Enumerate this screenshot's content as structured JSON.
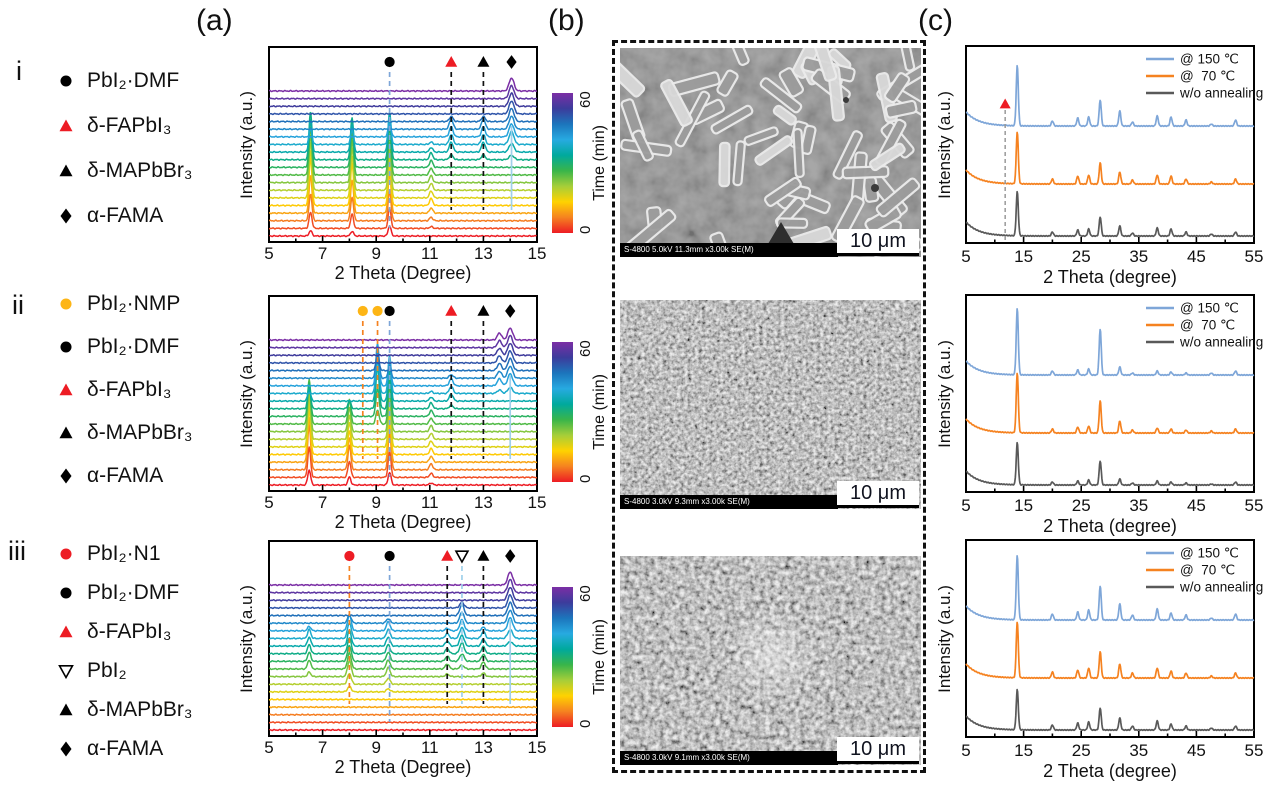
{
  "figure": {
    "panel_labels": {
      "a": "(a)",
      "b": "(b)",
      "c": "(c)"
    },
    "row_labels": [
      "i",
      "ii",
      "iii"
    ]
  },
  "colors": {
    "accent_blue": "#7ea6d8",
    "accent_orange": "#f58220",
    "accent_gray": "#595959",
    "marker_red": "#ed1c24",
    "marker_yellow": "#fdb515",
    "dash_black": "#111111",
    "dash_blue": "#7ea6d8",
    "dash_lightblue": "#9fd0ea",
    "dash_orange": "#f58220",
    "annotation_dash_gray": "#999999",
    "time_colormap": [
      "#ed1c24",
      "#f58220",
      "#ffd200",
      "#a6ce39",
      "#39b54a",
      "#00a99d",
      "#27aae1",
      "#1c75bc",
      "#3c3c9c",
      "#7b2ea5"
    ]
  },
  "chart_data": [
    {
      "id": "a-i",
      "type": "line",
      "variant": "waterfall",
      "xlabel": "2 Theta (Degree)",
      "ylabel": "Intensity (a.u.)",
      "xlim": [
        5,
        15
      ],
      "xticks": [
        5,
        7,
        9,
        11,
        13,
        15
      ],
      "n_curves": 20,
      "colorbar": {
        "label": "Time (min)",
        "min": 0,
        "max": 60
      },
      "legend": [
        {
          "shape": "circle",
          "color": "#000000",
          "label": "PbI₂·DMF"
        },
        {
          "shape": "triangle",
          "color": "#ed1c24",
          "label": "δ-FAPbI₃"
        },
        {
          "shape": "triangle",
          "color": "#000000",
          "label": "δ-MAPbBr₃"
        },
        {
          "shape": "diamond",
          "color": "#000000",
          "label": "α-FAMA"
        }
      ],
      "markers": [
        {
          "shape": "circle",
          "color": "#000000",
          "x": 9.5,
          "line": "dash-blue",
          "len": "long"
        },
        {
          "shape": "triangle",
          "color": "#ed1c24",
          "x": 11.8,
          "line": "dash-black",
          "len": "normal"
        },
        {
          "shape": "triangle",
          "color": "#000000",
          "x": 13.0,
          "line": "dash-black",
          "len": "normal"
        },
        {
          "shape": "diamond",
          "color": "#000000",
          "x": 14.05,
          "line": "solid-lightblue",
          "len": "short"
        }
      ],
      "peaks": [
        {
          "x": 6.55,
          "amp": 48,
          "w": 0.055,
          "t": [
            -0.5,
            4,
            10,
            13
          ]
        },
        {
          "x": 8.1,
          "amp": 42,
          "w": 0.055,
          "t": [
            -0.5,
            4,
            10,
            13
          ]
        },
        {
          "x": 9.5,
          "amp": 40,
          "w": 0.055,
          "t": [
            -1,
            3,
            11,
            14
          ]
        },
        {
          "x": 11.05,
          "amp": 7,
          "w": 0.06,
          "t": [
            0,
            4,
            10,
            13
          ]
        },
        {
          "x": 11.8,
          "amp": 10,
          "w": 0.07,
          "t": [
            9,
            11,
            14,
            16
          ]
        },
        {
          "x": 13.0,
          "amp": 10,
          "w": 0.07,
          "t": [
            9,
            11,
            14,
            16
          ]
        },
        {
          "x": 14.05,
          "amp": 13,
          "w": 0.09,
          "t": [
            9,
            12,
            20,
            21
          ]
        }
      ]
    },
    {
      "id": "a-ii",
      "type": "line",
      "variant": "waterfall",
      "xlabel": "2 Theta (Degree)",
      "ylabel": "Intensity (a.u.)",
      "xlim": [
        5,
        15
      ],
      "xticks": [
        5,
        7,
        9,
        11,
        13,
        15
      ],
      "n_curves": 20,
      "colorbar": {
        "label": "Time (min)",
        "min": 0,
        "max": 60
      },
      "legend": [
        {
          "shape": "circle",
          "color": "#fdb515",
          "label": "PbI₂·NMP"
        },
        {
          "shape": "circle",
          "color": "#000000",
          "label": "PbI₂·DMF"
        },
        {
          "shape": "triangle",
          "color": "#ed1c24",
          "label": "δ-FAPbI₃"
        },
        {
          "shape": "triangle",
          "color": "#000000",
          "label": "δ-MAPbBr₃"
        },
        {
          "shape": "diamond",
          "color": "#000000",
          "label": "α-FAMA"
        }
      ],
      "markers": [
        {
          "shape": "circle",
          "color": "#fdb515",
          "x": 8.5,
          "line": "dash-orange",
          "len": "normal"
        },
        {
          "shape": "circle",
          "color": "#fdb515",
          "x": 9.05,
          "line": "dash-orange",
          "len": "normal"
        },
        {
          "shape": "circle",
          "color": "#000000",
          "x": 9.5,
          "line": "dash-blue",
          "len": "long"
        },
        {
          "shape": "triangle",
          "color": "#ed1c24",
          "x": 11.8,
          "line": "dash-black",
          "len": "normal"
        },
        {
          "shape": "triangle",
          "color": "#000000",
          "x": 13.0,
          "line": "dash-black",
          "len": "normal"
        },
        {
          "shape": "diamond",
          "color": "#000000",
          "x": 14.0,
          "line": "solid-lightblue",
          "len": "short"
        }
      ],
      "peaks": [
        {
          "x": 6.5,
          "amp": 45,
          "w": 0.055,
          "t": [
            -1,
            2,
            8,
            12
          ]
        },
        {
          "x": 8.0,
          "amp": 24,
          "w": 0.055,
          "t": [
            -1,
            2,
            8,
            11
          ]
        },
        {
          "x": 9.05,
          "amp": 42,
          "w": 0.06,
          "t": [
            7,
            10,
            13,
            16
          ]
        },
        {
          "x": 9.5,
          "amp": 38,
          "w": 0.055,
          "t": [
            -1,
            2,
            12,
            15
          ]
        },
        {
          "x": 11.05,
          "amp": 6,
          "w": 0.06,
          "t": [
            -1,
            2,
            10,
            13
          ]
        },
        {
          "x": 11.8,
          "amp": 7,
          "w": 0.07,
          "t": [
            9,
            11,
            13,
            15
          ]
        },
        {
          "x": 13.6,
          "amp": 7,
          "w": 0.08,
          "t": [
            11,
            13,
            20,
            21
          ]
        },
        {
          "x": 14.0,
          "amp": 12,
          "w": 0.09,
          "t": [
            11,
            13,
            20,
            21
          ]
        }
      ]
    },
    {
      "id": "a-iii",
      "type": "line",
      "variant": "waterfall",
      "xlabel": "2 Theta (Degree)",
      "ylabel": "Intensity (a.u.)",
      "xlim": [
        5,
        15
      ],
      "xticks": [
        5,
        7,
        9,
        11,
        13,
        15
      ],
      "n_curves": 20,
      "colorbar": {
        "label": "Time (min)",
        "min": 0,
        "max": 60
      },
      "legend": [
        {
          "shape": "circle",
          "color": "#ed1c24",
          "label": "PbI₂·N1"
        },
        {
          "shape": "circle",
          "color": "#000000",
          "label": "PbI₂·DMF"
        },
        {
          "shape": "triangle",
          "color": "#ed1c24",
          "label": "δ-FAPbI₃"
        },
        {
          "shape": "triangle-down-open",
          "color": "#000000",
          "label": "PbI₂"
        },
        {
          "shape": "triangle",
          "color": "#000000",
          "label": "δ-MAPbBr₃"
        },
        {
          "shape": "diamond",
          "color": "#000000",
          "label": "α-FAMA"
        }
      ],
      "markers": [
        {
          "shape": "circle",
          "color": "#ed1c24",
          "x": 8.0,
          "line": "dash-orange",
          "len": "normal"
        },
        {
          "shape": "circle",
          "color": "#000000",
          "x": 9.5,
          "line": "dash-blue",
          "len": "long"
        },
        {
          "shape": "triangle",
          "color": "#ed1c24",
          "x": 11.65,
          "line": "dash-black",
          "len": "normal"
        },
        {
          "shape": "triangle-down-open",
          "color": "#000000",
          "x": 12.2,
          "line": "dash-lightblue",
          "len": "normal"
        },
        {
          "shape": "triangle",
          "color": "#000000",
          "x": 13.0,
          "line": "dash-black",
          "len": "normal"
        },
        {
          "shape": "diamond",
          "color": "#000000",
          "x": 14.0,
          "line": "solid-lightblue",
          "len": "short"
        }
      ],
      "peaks": [
        {
          "x": 6.5,
          "amp": 9,
          "w": 0.06,
          "t": [
            6,
            8,
            12,
            14
          ]
        },
        {
          "x": 8.0,
          "amp": 16,
          "w": 0.07,
          "t": [
            4,
            7,
            13,
            15
          ]
        },
        {
          "x": 9.45,
          "amp": 9,
          "w": 0.07,
          "t": [
            4,
            7,
            13,
            15
          ]
        },
        {
          "x": 11.65,
          "amp": 5,
          "w": 0.07,
          "t": [
            6,
            8,
            12,
            14
          ]
        },
        {
          "x": 12.2,
          "amp": 11,
          "w": 0.08,
          "t": [
            7,
            10,
            15,
            17
          ]
        },
        {
          "x": 13.0,
          "amp": 7,
          "w": 0.07,
          "t": [
            6,
            8,
            12,
            14
          ]
        },
        {
          "x": 14.0,
          "amp": 13,
          "w": 0.09,
          "t": [
            10,
            13,
            20,
            21
          ]
        }
      ]
    },
    {
      "id": "c-i",
      "type": "line",
      "variant": "stacked-xrd",
      "xlabel": "2 Theta (degree)",
      "ylabel": "Intensity (a.u.)",
      "xlim": [
        5,
        55
      ],
      "xticks": [
        5,
        15,
        25,
        35,
        45,
        55
      ],
      "peak_positions": [
        13.9,
        20.0,
        24.4,
        26.3,
        28.3,
        31.7,
        33.9,
        38.2,
        40.6,
        43.2,
        47.6,
        51.8
      ],
      "series": [
        {
          "name": "@ 150 ℃",
          "color": "#7ea6d8",
          "amps": [
            60,
            5,
            8,
            9,
            26,
            15,
            4,
            10,
            9,
            6,
            2,
            6
          ]
        },
        {
          "name": "@  70 ℃",
          "color": "#f58220",
          "amps": [
            52,
            5,
            8,
            9,
            21,
            12,
            4,
            9,
            8,
            5,
            2,
            5
          ]
        },
        {
          "name": "w/o annealing",
          "color": "#595959",
          "amps": [
            44,
            4,
            6,
            7,
            19,
            10,
            3,
            8,
            7,
            4,
            2,
            4
          ]
        }
      ],
      "annotation": {
        "shape": "triangle",
        "color": "#ed1c24",
        "x": 11.8
      }
    },
    {
      "id": "c-ii",
      "type": "line",
      "variant": "stacked-xrd",
      "xlabel": "2 Theta (degree)",
      "ylabel": "Intensity (a.u.)",
      "xlim": [
        5,
        55
      ],
      "xticks": [
        5,
        15,
        25,
        35,
        45,
        55
      ],
      "peak_positions": [
        13.9,
        20.0,
        24.4,
        26.3,
        28.3,
        31.7,
        33.9,
        38.2,
        40.6,
        43.2,
        47.6,
        51.8
      ],
      "series": [
        {
          "name": "@ 150 ℃",
          "color": "#7ea6d8",
          "amps": [
            66,
            4,
            5,
            6,
            46,
            8,
            2,
            4,
            3,
            2,
            2,
            4
          ]
        },
        {
          "name": "@  70 ℃",
          "color": "#f58220",
          "amps": [
            60,
            4,
            6,
            7,
            32,
            12,
            3,
            5,
            4,
            3,
            2,
            4
          ]
        },
        {
          "name": "w/o annealing",
          "color": "#595959",
          "amps": [
            42,
            3,
            4,
            5,
            24,
            6,
            2,
            4,
            3,
            2,
            1,
            3
          ]
        }
      ],
      "annotation": null
    },
    {
      "id": "c-iii",
      "type": "line",
      "variant": "stacked-xrd",
      "xlabel": "2 Theta (degree)",
      "ylabel": "Intensity (a.u.)",
      "xlim": [
        5,
        55
      ],
      "xticks": [
        5,
        15,
        25,
        35,
        45,
        55
      ],
      "peak_positions": [
        13.9,
        20.0,
        24.4,
        26.3,
        28.3,
        31.7,
        33.9,
        38.2,
        40.6,
        43.2,
        47.6,
        51.8
      ],
      "series": [
        {
          "name": "@ 150 ℃",
          "color": "#7ea6d8",
          "amps": [
            64,
            6,
            8,
            10,
            34,
            16,
            5,
            11,
            7,
            5,
            2,
            6
          ]
        },
        {
          "name": "@  70 ℃",
          "color": "#f58220",
          "amps": [
            56,
            6,
            8,
            10,
            26,
            14,
            5,
            10,
            7,
            5,
            2,
            5
          ]
        },
        {
          "name": "w/o annealing",
          "color": "#595959",
          "amps": [
            40,
            5,
            7,
            8,
            22,
            12,
            4,
            9,
            6,
            4,
            2,
            4
          ]
        }
      ],
      "annotation": null
    }
  ],
  "sem": {
    "panels": [
      {
        "caption": "S-4800 5.0kV 11.3mm x3.00k SE(M)",
        "scale_label": "10 μm",
        "texture": "rods"
      },
      {
        "caption": "S-4800 3.0kV 9.3mm x3.00k SE(M)",
        "scale_label": "10 μm",
        "texture": "fine"
      },
      {
        "caption": "S-4800 3.0kV 9.1mm x3.00k SE(M)",
        "scale_label": "10 μm",
        "texture": "fine-coarse"
      }
    ]
  }
}
